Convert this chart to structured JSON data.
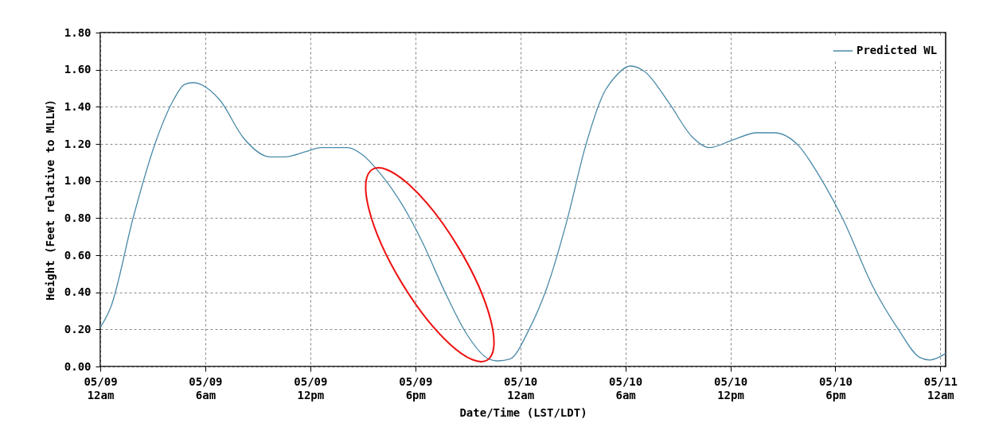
{
  "chart_data": {
    "type": "line",
    "xlabel": "Date/Time (LST/LDT)",
    "ylabel": "Height (Feet relative to MLLW)",
    "x": [
      "--05-09T00:00",
      "--05-09T00:36",
      "--05-09T01:54",
      "--05-09T03:12",
      "--05-09T04:12",
      "--05-09T04:48",
      "--05-09T05:18",
      "--05-09T06:48",
      "--05-09T08:12",
      "--05-09T09:42",
      "--05-09T10:30",
      "--05-09T11:48",
      "--05-09T12:36",
      "--05-09T14:06",
      "--05-09T15:00",
      "--05-09T16:00",
      "--05-09T17:12",
      "--05-09T18:18",
      "--05-09T19:48",
      "--05-09T20:54",
      "--05-09T22:12",
      "--05-09T22:42",
      "--05-09T23:24",
      "--05-10T00:30",
      "--05-10T01:30",
      "--05-10T02:42",
      "--05-10T03:42",
      "--05-10T04:45",
      "--05-10T05:24",
      "--05-10T06:18",
      "--05-10T07:06",
      "--05-10T08:30",
      "--05-10T09:48",
      "--05-10T10:48",
      "--05-10T12:06",
      "--05-10T13:30",
      "--05-10T14:30",
      "--05-10T15:54",
      "--05-10T17:00",
      "--05-10T18:24",
      "--05-10T20:12",
      "--05-10T21:36",
      "--05-10T22:48",
      "--05-10T23:24",
      "--05-11T00:18"
    ],
    "series": [
      {
        "name": "Predicted WL",
        "color": "#4a8aa8",
        "values": [
          0.21,
          0.32,
          0.81,
          1.22,
          1.44,
          1.52,
          1.53,
          1.44,
          1.23,
          1.13,
          1.13,
          1.16,
          1.18,
          1.18,
          1.14,
          1.04,
          0.88,
          0.69,
          0.38,
          0.18,
          0.04,
          0.03,
          0.04,
          0.2,
          0.42,
          0.8,
          1.18,
          1.47,
          1.56,
          1.62,
          1.59,
          1.42,
          1.24,
          1.18,
          1.22,
          1.26,
          1.26,
          1.19,
          1.04,
          0.8,
          0.42,
          0.2,
          0.05,
          0.035,
          0.07
        ]
      }
    ],
    "xlim": [
      "--05-09T00:00",
      "--05-11T00:18"
    ],
    "xticks": [
      {
        "value": "--05-09T00:00",
        "label": "05/09\n12am"
      },
      {
        "value": "--05-09T06:00",
        "label": "05/09\n6am"
      },
      {
        "value": "--05-09T12:00",
        "label": "05/09\n12pm"
      },
      {
        "value": "--05-09T18:00",
        "label": "05/09\n6pm"
      },
      {
        "value": "--05-10T00:00",
        "label": "05/10\n12am"
      },
      {
        "value": "--05-10T06:00",
        "label": "05/10\n6am"
      },
      {
        "value": "--05-10T12:00",
        "label": "05/10\n12pm"
      },
      {
        "value": "--05-10T18:00",
        "label": "05/10\n6pm"
      },
      {
        "value": "--05-11T00:00",
        "label": "05/11\n12am"
      }
    ],
    "ylim": [
      0,
      1.8
    ],
    "yticks": [
      {
        "value": 0,
        "label": "0.00"
      },
      {
        "value": 0.2,
        "label": "0.20"
      },
      {
        "value": 0.4,
        "label": "0.40"
      },
      {
        "value": 0.6,
        "label": "0.60"
      },
      {
        "value": 0.8,
        "label": "0.80"
      },
      {
        "value": 1.0,
        "label": "1.00"
      },
      {
        "value": 1.2,
        "label": "1.20"
      },
      {
        "value": 1.4,
        "label": "1.40"
      },
      {
        "value": 1.6,
        "label": "1.60"
      },
      {
        "value": 1.8,
        "label": "1.80"
      }
    ],
    "grid": true,
    "legend": "top right",
    "marker": "none",
    "line_style": "solid"
  }
}
